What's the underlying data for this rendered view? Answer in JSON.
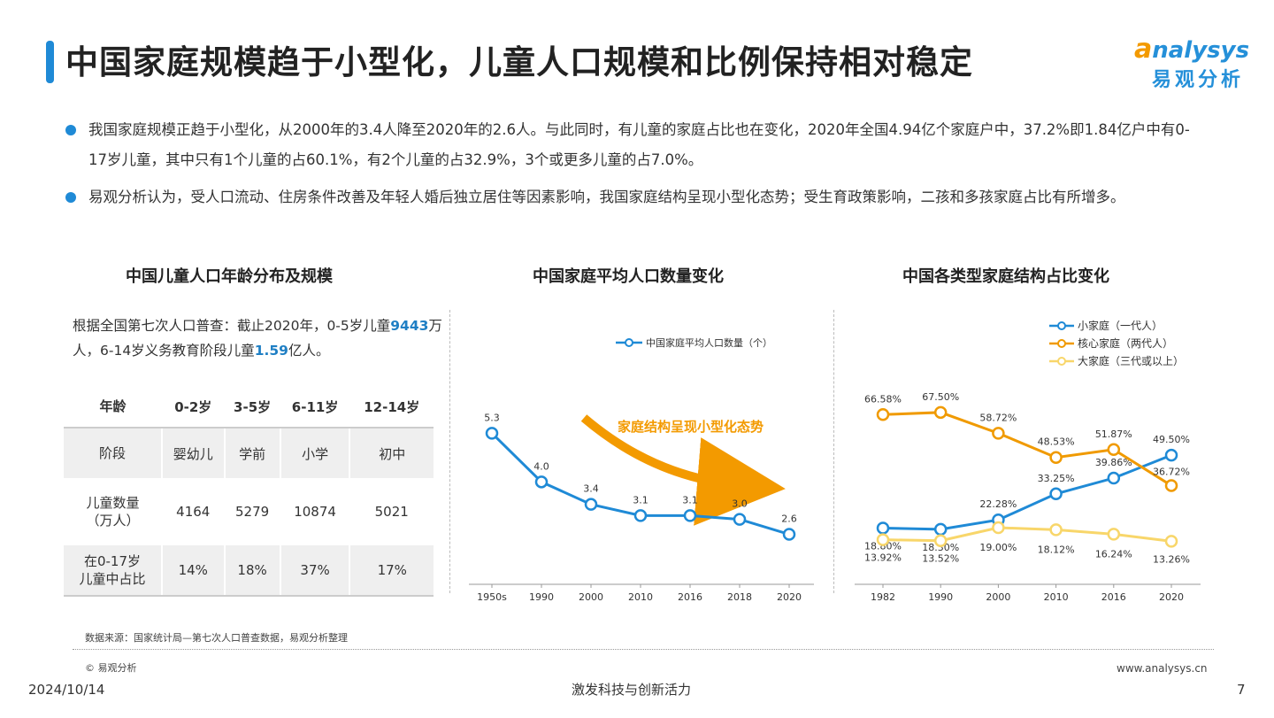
{
  "title": "中国家庭规模趋于小型化，儿童人口规模和比例保持相对稳定",
  "logo": {
    "en_accent": "a",
    "en_rest": "nalysys",
    "cn": "易观分析"
  },
  "bullets": [
    "我国家庭规模正趋于小型化，从2000年的3.4人降至2020年的2.6人。与此同时，有儿童的家庭占比也在变化，2020年全国4.94亿个家庭户中，37.2%即1.84亿户中有0-17岁儿童，其中只有1个儿童的占60.1%，有2个儿童的占32.9%，3个或更多儿童的占7.0%。",
    "易观分析认为，受人口流动、住房条件改善及年轻人婚后独立居住等因素影响，我国家庭结构呈现小型化态势；受生育政策影响，二孩和多孩家庭占比有所增多。"
  ],
  "panel1": {
    "title": "中国儿童人口年龄分布及规模",
    "note_parts": [
      "根据全国第七次人口普查：截止2020年，0-5岁儿童",
      "9443",
      "万人，6-14岁义务教育阶段儿童",
      "1.59",
      "亿人。"
    ],
    "table": {
      "headers": [
        "年龄",
        "0-2岁",
        "3-5岁",
        "6-11岁",
        "12-14岁"
      ],
      "rows": [
        [
          "阶段",
          "婴幼儿",
          "学前",
          "小学",
          "初中"
        ],
        [
          "儿童数量\n（万人）",
          "4164",
          "5279",
          "10874",
          "5021"
        ],
        [
          "在0-17岁\n儿童中占比",
          "14%",
          "18%",
          "37%",
          "17%"
        ]
      ]
    }
  },
  "panel2": {
    "title": "中国家庭平均人口数量变化",
    "annotation": "家庭结构呈现小型化态势"
  },
  "panel3": {
    "title": "中国各类型家庭结构占比变化"
  },
  "chart_data": [
    {
      "type": "line",
      "title": "中国家庭平均人口数量变化",
      "categories": [
        "1950s",
        "1990",
        "2000",
        "2010",
        "2016",
        "2018",
        "2020"
      ],
      "series": [
        {
          "name": "中国家庭平均人口数量（个）",
          "values": [
            5.3,
            4.0,
            3.4,
            3.1,
            3.1,
            3.0,
            2.6
          ],
          "labels": [
            "5.3",
            "4.0",
            "3.4",
            "3.1",
            "3.1",
            "3.0",
            "2.6"
          ],
          "color": "#1f8ad6"
        }
      ],
      "ylim": [
        1.5,
        7.0
      ],
      "legend": "top-right",
      "grid": false
    },
    {
      "type": "line",
      "title": "中国各类型家庭结构占比变化",
      "categories": [
        "1982",
        "1990",
        "2000",
        "2010",
        "2016",
        "2020"
      ],
      "series": [
        {
          "name": "小家庭（一代人）",
          "values": [
            18.8,
            18.3,
            22.28,
            33.25,
            39.86,
            49.5
          ],
          "labels": [
            "18.80%",
            "18.30%",
            "22.28%",
            "33.25%",
            "39.86%",
            "49.50%"
          ],
          "color": "#1f8ad6"
        },
        {
          "name": "核心家庭（两代人）",
          "values": [
            66.58,
            67.5,
            58.72,
            48.53,
            51.87,
            36.72
          ],
          "labels": [
            "66.58%",
            "67.50%",
            "58.72%",
            "48.53%",
            "51.87%",
            "36.72%"
          ],
          "color": "#f09a00"
        },
        {
          "name": "大家庭（三代或以上）",
          "values": [
            13.92,
            13.52,
            19.0,
            18.12,
            16.24,
            13.26
          ],
          "labels": [
            "13.92%",
            "13.52%",
            "19.00%",
            "18.12%",
            "16.24%",
            "13.26%"
          ],
          "color": "#f8d66a"
        }
      ],
      "ylim": [
        0,
        85
      ],
      "legend": "top-right",
      "grid": false
    }
  ],
  "footer": {
    "source": "数据来源：国家统计局—第七次人口普查数据，易观分析整理",
    "copyright": "© 易观分析",
    "website": "www.analysys.cn",
    "date": "2024/10/14",
    "slogan": "激发科技与创新活力",
    "page": "7"
  }
}
